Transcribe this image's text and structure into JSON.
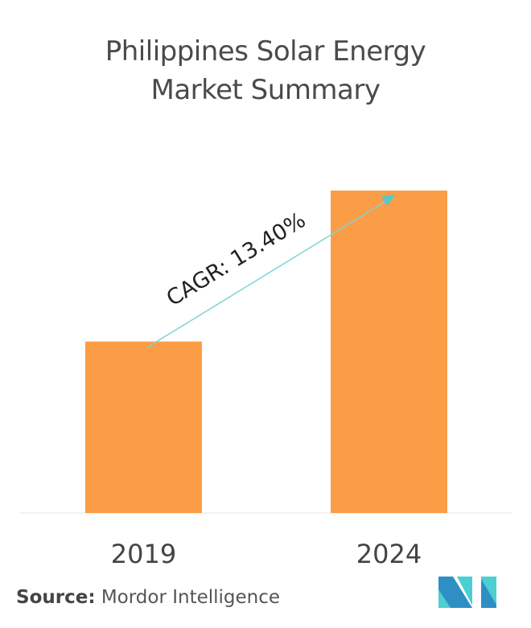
{
  "chart_data": {
    "type": "bar",
    "title": "Philippines Solar Energy Market Summary",
    "categories": [
      "2019",
      "2024"
    ],
    "values": [
      1,
      1.88
    ],
    "value_note_hidden": false,
    "annotation": "CAGR: 13.40%",
    "grid": false,
    "bar_color": "#fb9d47",
    "arrow_color": "#7fd3d3"
  },
  "source": {
    "label": "Source:",
    "value": "Mordor Intelligence"
  },
  "logo": {
    "colors": [
      "#2e8fc4",
      "#4ccfd0"
    ]
  }
}
